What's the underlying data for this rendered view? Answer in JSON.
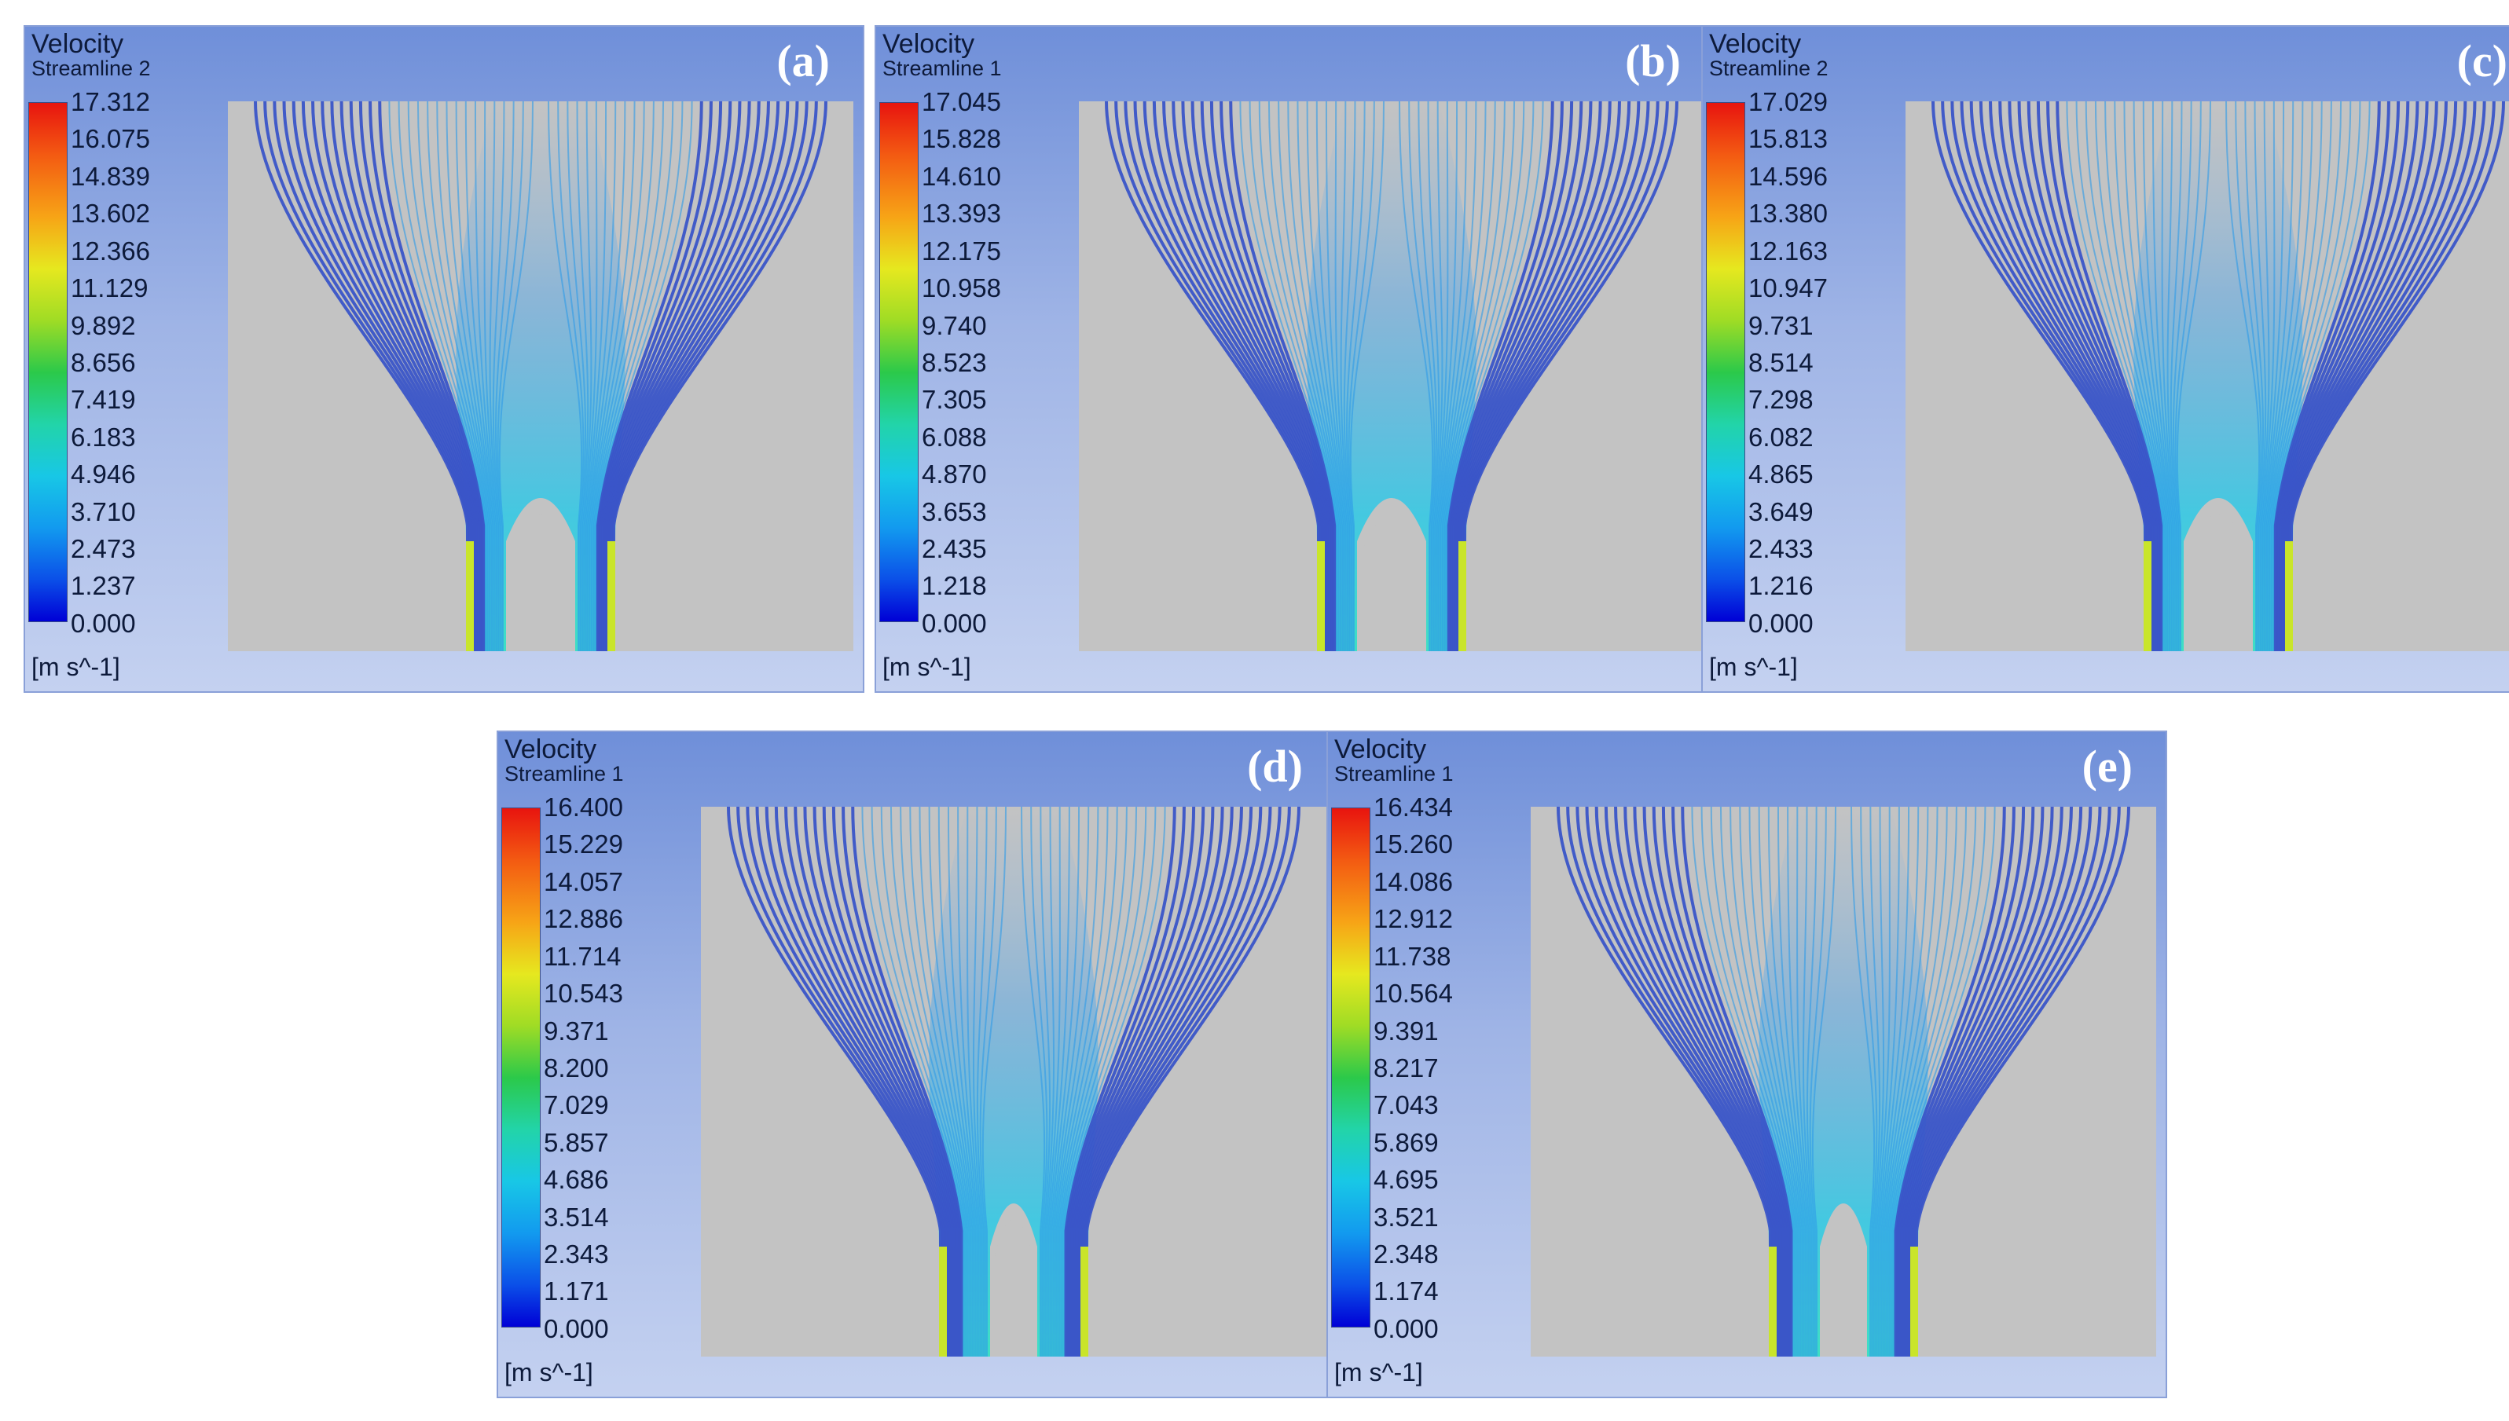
{
  "panels": [
    {
      "label": "(a)",
      "title": "Velocity",
      "streamline": "Streamline 2",
      "ticks": [
        "17.312",
        "16.075",
        "14.839",
        "13.602",
        "12.366",
        "11.129",
        "9.892",
        "8.656",
        "7.419",
        "6.183",
        "4.946",
        "3.710",
        "2.473",
        "1.237",
        "0.000"
      ],
      "unit": "[m s^-1]"
    },
    {
      "label": "(b)",
      "title": "Velocity",
      "streamline": "Streamline 1",
      "ticks": [
        "17.045",
        "15.828",
        "14.610",
        "13.393",
        "12.175",
        "10.958",
        "9.740",
        "8.523",
        "7.305",
        "6.088",
        "4.870",
        "3.653",
        "2.435",
        "1.218",
        "0.000"
      ],
      "unit": "[m s^-1]"
    },
    {
      "label": "(c)",
      "title": "Velocity",
      "streamline": "Streamline 2",
      "ticks": [
        "17.029",
        "15.813",
        "14.596",
        "13.380",
        "12.163",
        "10.947",
        "9.731",
        "8.514",
        "7.298",
        "6.082",
        "4.865",
        "3.649",
        "2.433",
        "1.216",
        "0.000"
      ],
      "unit": "[m s^-1]"
    },
    {
      "label": "(d)",
      "title": "Velocity",
      "streamline": "Streamline 1",
      "ticks": [
        "16.400",
        "15.229",
        "14.057",
        "12.886",
        "11.714",
        "10.543",
        "9.371",
        "8.200",
        "7.029",
        "5.857",
        "4.686",
        "3.514",
        "2.343",
        "1.171",
        "0.000"
      ],
      "unit": "[m s^-1]"
    },
    {
      "label": "(e)",
      "title": "Velocity",
      "streamline": "Streamline 1",
      "ticks": [
        "16.434",
        "15.260",
        "14.086",
        "12.912",
        "11.738",
        "10.564",
        "9.391",
        "8.217",
        "7.043",
        "5.869",
        "4.695",
        "3.521",
        "2.348",
        "1.174",
        "0.000"
      ],
      "unit": "[m s^-1]"
    }
  ],
  "colors": {
    "streamline_outer": "#3a55c8",
    "streamline_core": "#2f9be8",
    "plot_background": "#c3c3c3"
  }
}
